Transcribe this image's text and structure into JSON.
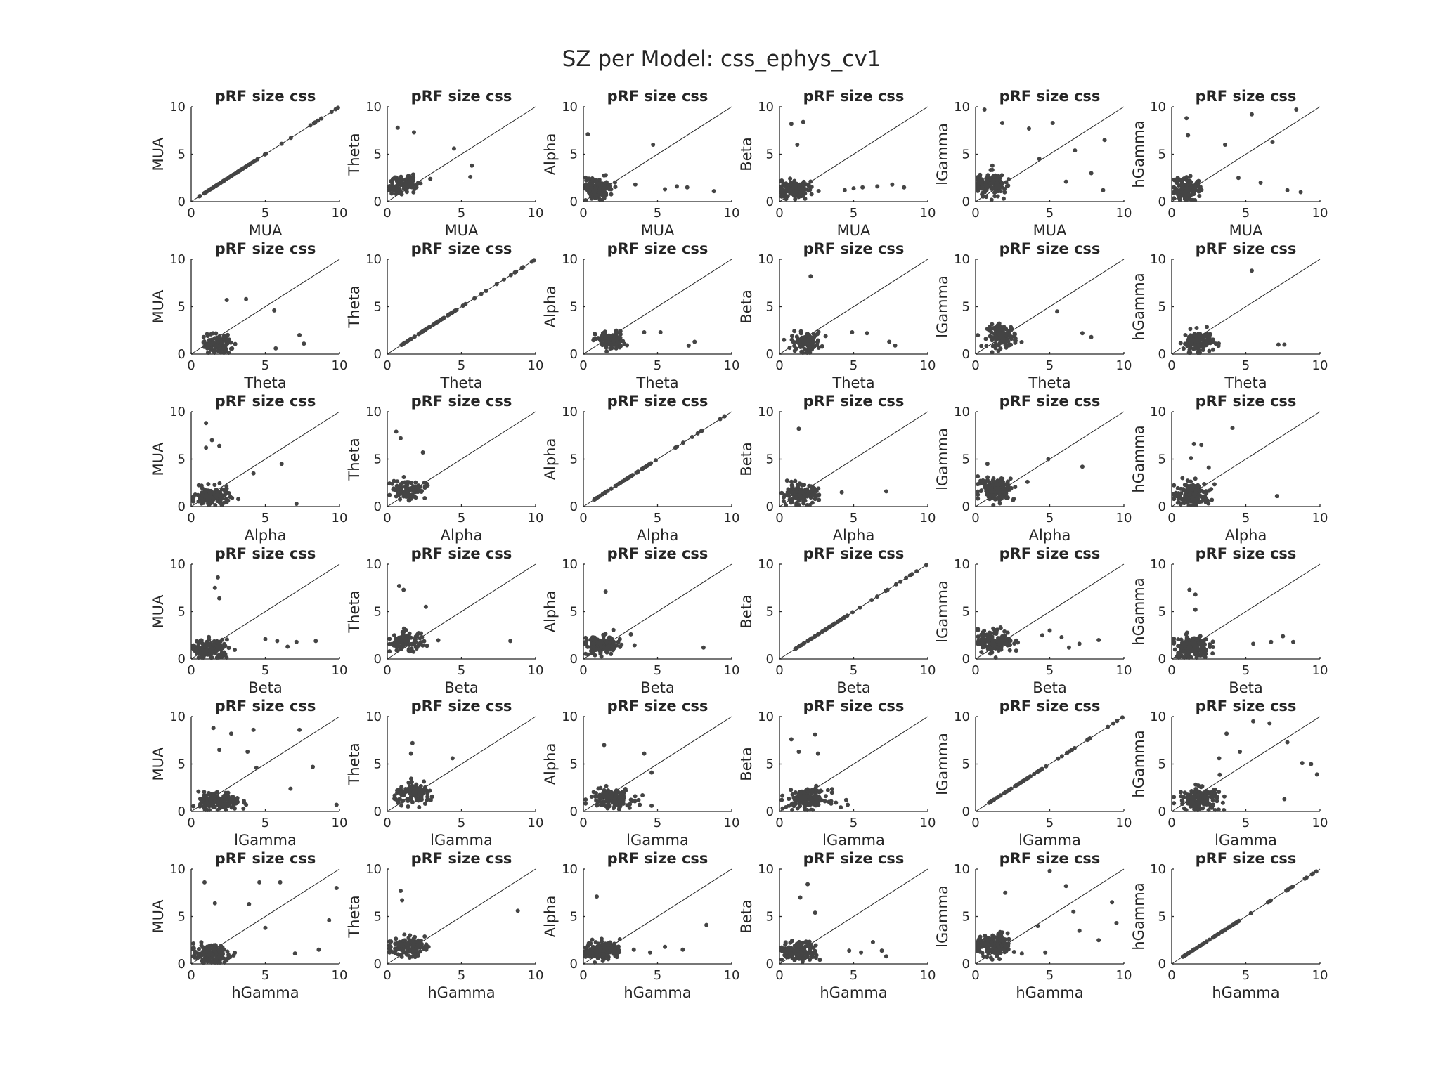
{
  "title": "SZ per Model: css_ephys_cv1",
  "subplot_title": "pRF size css",
  "bands": [
    "MUA",
    "Theta",
    "Alpha",
    "Beta",
    "lGamma",
    "hGamma"
  ],
  "chart_data": {
    "type": "scatter",
    "title": "SZ per Model: css_ephys_cv1",
    "layout": "6x6 grid; row r = x-axis band, column c = y-axis band",
    "xlim": [
      0,
      10
    ],
    "ylim": [
      0,
      10
    ],
    "xticks": [
      0,
      5,
      10
    ],
    "yticks": [
      0,
      5,
      10
    ],
    "reference_line": "y = x",
    "marker_color": "#444444",
    "clusters": {
      "MUA": {
        "cx": 1.0,
        "sx": 0.5,
        "cy": 1.0,
        "sy": 0.5,
        "n": 140
      },
      "Theta": {
        "cx": 1.8,
        "sx": 0.5,
        "cy": 1.8,
        "sy": 0.5,
        "n": 60
      },
      "Alpha": {
        "cx": 1.4,
        "sx": 0.6,
        "cy": 1.4,
        "sy": 0.5,
        "n": 140
      },
      "Beta": {
        "cx": 1.3,
        "sx": 0.6,
        "cy": 1.3,
        "sy": 0.5,
        "n": 140
      },
      "lGamma": {
        "cx": 1.9,
        "sx": 0.7,
        "cy": 1.9,
        "sy": 0.6,
        "n": 160
      },
      "hGamma": {
        "cx": 1.3,
        "sx": 0.6,
        "cy": 1.3,
        "sy": 0.6,
        "n": 160
      }
    },
    "outliers": [
      {
        "row": 0,
        "col": 1,
        "pts": [
          [
            0.7,
            7.8
          ],
          [
            1.8,
            7.3
          ],
          [
            4.5,
            5.6
          ],
          [
            5.7,
            3.8
          ],
          [
            5.6,
            2.6
          ],
          [
            2.9,
            2.4
          ]
        ]
      },
      {
        "row": 0,
        "col": 2,
        "pts": [
          [
            0.3,
            7.1
          ],
          [
            4.7,
            6.0
          ],
          [
            3.5,
            1.8
          ],
          [
            5.5,
            1.3
          ],
          [
            6.3,
            1.6
          ],
          [
            7.0,
            1.5
          ],
          [
            8.8,
            1.1
          ]
        ]
      },
      {
        "row": 0,
        "col": 3,
        "pts": [
          [
            0.8,
            8.2
          ],
          [
            1.6,
            8.4
          ],
          [
            1.2,
            6.0
          ],
          [
            4.4,
            1.2
          ],
          [
            5.6,
            1.5
          ],
          [
            6.6,
            1.6
          ],
          [
            7.6,
            1.8
          ],
          [
            8.4,
            1.5
          ],
          [
            5.0,
            1.4
          ]
        ]
      },
      {
        "row": 0,
        "col": 4,
        "pts": [
          [
            0.6,
            9.7
          ],
          [
            1.8,
            8.3
          ],
          [
            5.2,
            8.3
          ],
          [
            3.6,
            7.7
          ],
          [
            6.7,
            5.4
          ],
          [
            8.7,
            6.5
          ],
          [
            4.3,
            4.5
          ],
          [
            7.8,
            3.0
          ],
          [
            6.1,
            2.1
          ],
          [
            8.6,
            1.2
          ]
        ]
      },
      {
        "row": 0,
        "col": 5,
        "pts": [
          [
            1.0,
            8.8
          ],
          [
            5.4,
            9.2
          ],
          [
            8.4,
            9.7
          ],
          [
            1.1,
            7.0
          ],
          [
            6.8,
            6.3
          ],
          [
            3.6,
            6.0
          ],
          [
            4.5,
            2.5
          ],
          [
            6.0,
            2.0
          ],
          [
            7.8,
            1.2
          ],
          [
            8.7,
            1.0
          ]
        ]
      },
      {
        "row": 1,
        "col": 0,
        "pts": [
          [
            2.4,
            5.7
          ],
          [
            3.7,
            5.8
          ],
          [
            5.6,
            4.6
          ],
          [
            7.3,
            2.0
          ],
          [
            7.6,
            1.1
          ],
          [
            5.7,
            0.6
          ]
        ]
      },
      {
        "row": 1,
        "col": 2,
        "pts": [
          [
            4.1,
            2.3
          ],
          [
            5.2,
            2.3
          ],
          [
            7.1,
            0.9
          ],
          [
            7.5,
            1.3
          ]
        ]
      },
      {
        "row": 1,
        "col": 3,
        "pts": [
          [
            2.1,
            8.2
          ],
          [
            4.9,
            2.3
          ],
          [
            5.9,
            2.2
          ],
          [
            7.4,
            1.3
          ],
          [
            7.8,
            0.9
          ]
        ]
      },
      {
        "row": 1,
        "col": 4,
        "pts": [
          [
            5.5,
            4.5
          ],
          [
            7.2,
            2.2
          ],
          [
            7.8,
            1.8
          ]
        ]
      },
      {
        "row": 1,
        "col": 5,
        "pts": [
          [
            5.4,
            8.8
          ],
          [
            7.2,
            1.0
          ],
          [
            7.6,
            1.0
          ]
        ]
      },
      {
        "row": 2,
        "col": 0,
        "pts": [
          [
            1.0,
            8.8
          ],
          [
            1.4,
            7.0
          ],
          [
            1.9,
            6.4
          ],
          [
            1.0,
            6.2
          ],
          [
            6.1,
            4.5
          ],
          [
            4.2,
            3.5
          ],
          [
            7.1,
            0.3
          ]
        ]
      },
      {
        "row": 2,
        "col": 1,
        "pts": [
          [
            0.6,
            7.9
          ],
          [
            0.9,
            7.2
          ],
          [
            2.4,
            5.7
          ]
        ]
      },
      {
        "row": 2,
        "col": 3,
        "pts": [
          [
            1.3,
            8.2
          ],
          [
            4.2,
            1.5
          ],
          [
            7.2,
            1.6
          ]
        ]
      },
      {
        "row": 2,
        "col": 4,
        "pts": [
          [
            0.8,
            4.5
          ],
          [
            4.9,
            5.0
          ],
          [
            7.2,
            4.2
          ],
          [
            3.5,
            2.6
          ]
        ]
      },
      {
        "row": 2,
        "col": 5,
        "pts": [
          [
            4.1,
            8.3
          ],
          [
            1.5,
            6.6
          ],
          [
            2.0,
            6.5
          ],
          [
            1.3,
            5.1
          ],
          [
            2.5,
            4.1
          ],
          [
            7.1,
            1.1
          ]
        ]
      },
      {
        "row": 3,
        "col": 0,
        "pts": [
          [
            1.8,
            8.6
          ],
          [
            1.6,
            7.5
          ],
          [
            1.9,
            6.4
          ],
          [
            5.0,
            2.1
          ],
          [
            5.8,
            1.9
          ],
          [
            7.1,
            1.8
          ],
          [
            8.4,
            1.9
          ],
          [
            6.5,
            1.3
          ]
        ]
      },
      {
        "row": 3,
        "col": 1,
        "pts": [
          [
            0.8,
            7.7
          ],
          [
            1.1,
            7.3
          ],
          [
            8.3,
            1.9
          ],
          [
            2.6,
            5.5
          ]
        ]
      },
      {
        "row": 3,
        "col": 2,
        "pts": [
          [
            1.5,
            7.1
          ],
          [
            8.1,
            1.2
          ],
          [
            3.2,
            2.6
          ]
        ]
      },
      {
        "row": 3,
        "col": 4,
        "pts": [
          [
            4.5,
            2.5
          ],
          [
            5.0,
            3.0
          ],
          [
            5.8,
            2.3
          ],
          [
            6.3,
            1.2
          ],
          [
            7.0,
            1.6
          ],
          [
            8.3,
            2.0
          ]
        ]
      },
      {
        "row": 3,
        "col": 5,
        "pts": [
          [
            1.2,
            7.3
          ],
          [
            1.6,
            6.8
          ],
          [
            1.6,
            5.2
          ],
          [
            7.5,
            2.4
          ],
          [
            8.2,
            1.8
          ],
          [
            5.5,
            1.6
          ],
          [
            6.7,
            1.8
          ]
        ]
      },
      {
        "row": 4,
        "col": 0,
        "pts": [
          [
            1.5,
            8.8
          ],
          [
            2.7,
            8.2
          ],
          [
            4.2,
            8.6
          ],
          [
            7.3,
            8.6
          ],
          [
            1.9,
            6.5
          ],
          [
            3.8,
            6.3
          ],
          [
            8.2,
            4.7
          ],
          [
            4.4,
            4.6
          ],
          [
            6.7,
            2.4
          ],
          [
            9.8,
            0.7
          ]
        ]
      },
      {
        "row": 4,
        "col": 1,
        "pts": [
          [
            1.7,
            7.2
          ],
          [
            1.6,
            6.1
          ],
          [
            4.4,
            5.6
          ]
        ]
      },
      {
        "row": 4,
        "col": 2,
        "pts": [
          [
            1.4,
            7.0
          ],
          [
            4.1,
            6.1
          ],
          [
            4.6,
            4.1
          ],
          [
            3.8,
            0.7
          ],
          [
            4.6,
            0.6
          ]
        ]
      },
      {
        "row": 4,
        "col": 3,
        "pts": [
          [
            0.8,
            7.6
          ],
          [
            2.4,
            8.1
          ],
          [
            1.3,
            6.3
          ],
          [
            2.6,
            6.1
          ],
          [
            4.5,
            1.2
          ],
          [
            4.6,
            0.7
          ]
        ]
      },
      {
        "row": 4,
        "col": 5,
        "pts": [
          [
            5.5,
            9.5
          ],
          [
            6.6,
            9.3
          ],
          [
            3.7,
            8.2
          ],
          [
            4.6,
            6.3
          ],
          [
            8.8,
            5.1
          ],
          [
            7.8,
            7.3
          ],
          [
            9.4,
            5.0
          ],
          [
            9.8,
            3.9
          ],
          [
            7.6,
            1.3
          ],
          [
            3.2,
            5.6
          ]
        ]
      },
      {
        "row": 5,
        "col": 0,
        "pts": [
          [
            0.9,
            8.6
          ],
          [
            4.6,
            8.6
          ],
          [
            6.0,
            8.6
          ],
          [
            9.8,
            8.0
          ],
          [
            1.6,
            6.4
          ],
          [
            3.9,
            6.3
          ],
          [
            9.3,
            4.6
          ],
          [
            5.0,
            3.8
          ],
          [
            7.0,
            1.1
          ],
          [
            8.6,
            1.5
          ]
        ]
      },
      {
        "row": 5,
        "col": 1,
        "pts": [
          [
            0.9,
            7.7
          ],
          [
            1.0,
            6.7
          ],
          [
            8.8,
            5.6
          ]
        ]
      },
      {
        "row": 5,
        "col": 2,
        "pts": [
          [
            0.9,
            7.1
          ],
          [
            8.3,
            4.1
          ],
          [
            5.5,
            1.8
          ],
          [
            6.7,
            1.5
          ],
          [
            4.5,
            1.2
          ],
          [
            3.4,
            1.5
          ]
        ]
      },
      {
        "row": 5,
        "col": 3,
        "pts": [
          [
            1.9,
            8.4
          ],
          [
            1.4,
            7.0
          ],
          [
            2.4,
            5.4
          ],
          [
            4.7,
            1.4
          ],
          [
            5.5,
            1.2
          ],
          [
            6.3,
            2.3
          ],
          [
            7.2,
            0.8
          ],
          [
            6.9,
            1.4
          ]
        ]
      },
      {
        "row": 5,
        "col": 4,
        "pts": [
          [
            5.0,
            9.8
          ],
          [
            6.1,
            8.2
          ],
          [
            2.0,
            7.5
          ],
          [
            6.6,
            5.5
          ],
          [
            9.2,
            6.5
          ],
          [
            9.5,
            4.3
          ],
          [
            7.0,
            3.5
          ],
          [
            4.7,
            1.2
          ],
          [
            8.3,
            2.5
          ],
          [
            4.2,
            4.0
          ]
        ]
      }
    ]
  }
}
